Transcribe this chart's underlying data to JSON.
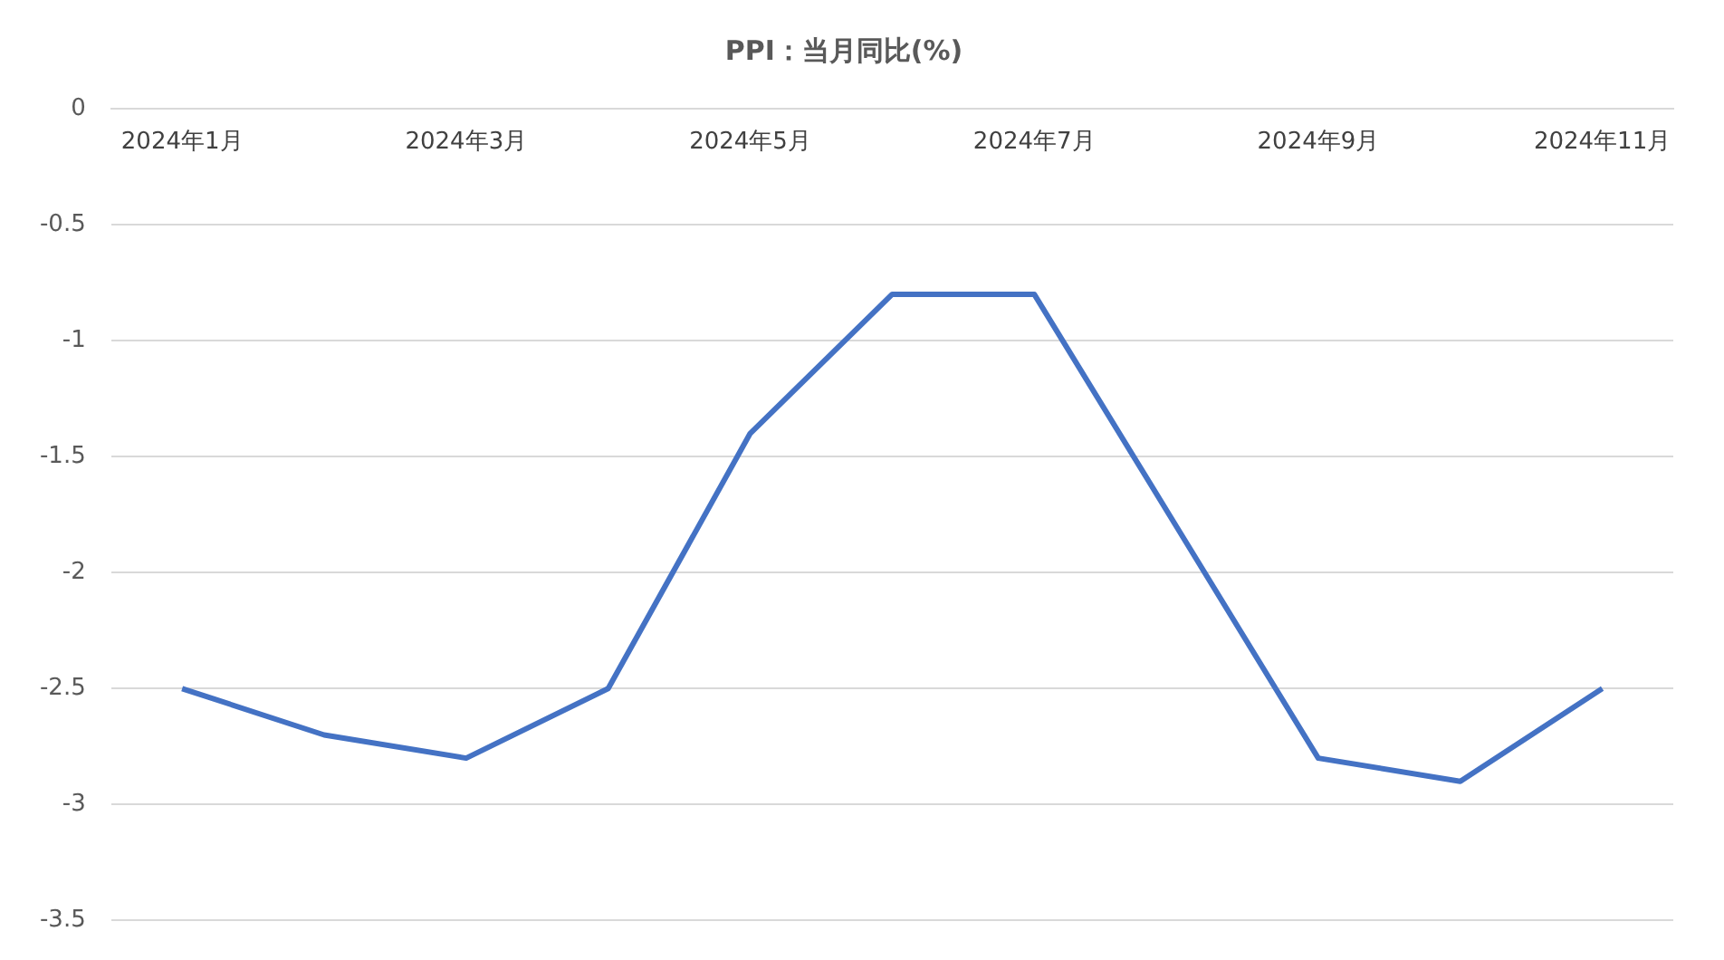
{
  "chart_data": {
    "type": "line",
    "title": "PPI：当月同比(%)",
    "categories": [
      "2024年1月",
      null,
      "2024年3月",
      null,
      "2024年5月",
      null,
      "2024年7月",
      null,
      "2024年9月",
      null,
      "2024年11月"
    ],
    "series": [
      {
        "color": "#4472c4",
        "values": [
          -2.5,
          -2.7,
          -2.8,
          -2.5,
          -1.4,
          -0.8,
          -0.8,
          -1.8,
          -2.8,
          -2.9,
          -2.5
        ]
      }
    ],
    "ylim": [
      -3.5,
      0
    ],
    "yticks": [
      -3.5,
      -3,
      -2.5,
      -2,
      -1.5,
      -1,
      -0.5,
      0
    ],
    "grid": "y",
    "legend": false,
    "marker": "none",
    "line_style": "solid"
  }
}
